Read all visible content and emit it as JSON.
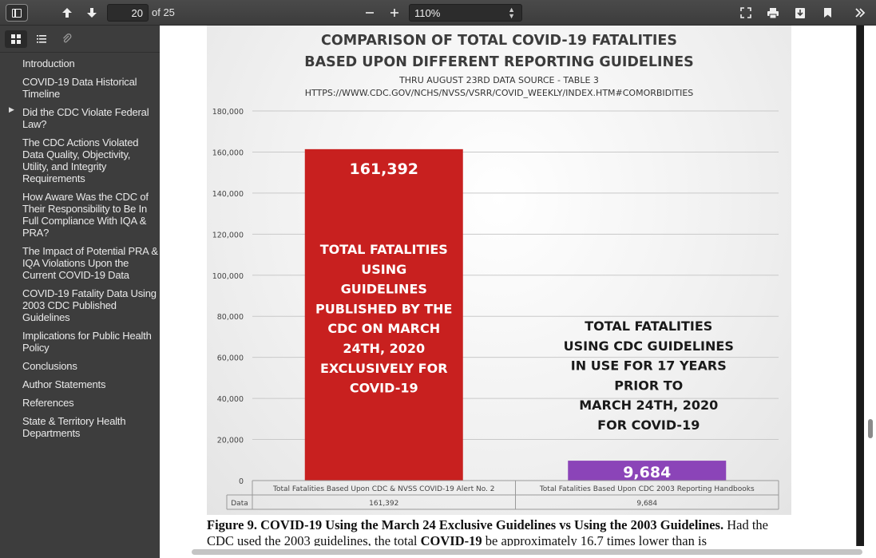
{
  "toolbar": {
    "page_current": "20",
    "page_total_label": "of 25",
    "zoom_value": "110%"
  },
  "icons": {
    "sidebar_toggle": "sidebar-toggle-icon",
    "prev_page": "arrow-up-icon",
    "next_page": "arrow-down-icon",
    "zoom_out": "minus-icon",
    "zoom_in": "plus-icon",
    "fit": "fit-page-icon",
    "print": "printer-icon",
    "download": "download-icon",
    "bookmark": "bookmark-icon",
    "more": "double-chevron-right-icon"
  },
  "sidebar": {
    "items": [
      {
        "label": "Introduction"
      },
      {
        "label": "COVID-19 Data Historical Timeline"
      },
      {
        "label": "Did the CDC Violate Federal Law?",
        "expandable": true
      },
      {
        "label": "The CDC Actions Violated Data Quality, Objectivity, Utility, and Integrity Requirements"
      },
      {
        "label": "How Aware Was the CDC of Their Responsibility to Be In Full Compliance With IQA & PRA?"
      },
      {
        "label": "The Impact of Potential PRA & IQA Violations Upon the Current COVID-19 Data"
      },
      {
        "label": "COVID-19 Fatality Data Using 2003 CDC Published Guidelines"
      },
      {
        "label": "Implications for Public Health Policy"
      },
      {
        "label": "Conclusions"
      },
      {
        "label": "Author Statements"
      },
      {
        "label": "References"
      },
      {
        "label": "State & Territory Health Departments"
      }
    ]
  },
  "colors": {
    "bar_red": "#c8201f",
    "bar_purple": "#8b44b8"
  },
  "chart_data": {
    "type": "bar",
    "title_line1": "COMPARISON OF TOTAL COVID-19 FATALITIES",
    "title_line2": "BASED UPON DIFFERENT REPORTING GUIDELINES",
    "subtitle_line1": "THRU AUGUST 23RD DATA SOURCE - TABLE 3",
    "subtitle_line2": "HTTPS://WWW.CDC.GOV/NCHS/NVSS/VSRR/COVID_WEEKLY/INDEX.HTM#COMORBIDITIES",
    "categories": [
      "Total Fatalities Based Upon CDC & NVSS COVID-19 Alert No. 2",
      "Total Fatalities Based Upon CDC 2003 Reporting Handbooks"
    ],
    "values": [
      161392,
      9684
    ],
    "value_labels": [
      "161,392",
      "9,684"
    ],
    "table_row_label": "Data",
    "table_values": [
      "161,392",
      "9,684"
    ],
    "ylim": [
      0,
      180000
    ],
    "yticks": [
      "0",
      "20,000",
      "40,000",
      "60,000",
      "80,000",
      "100,000",
      "120,000",
      "140,000",
      "160,000",
      "180,000"
    ],
    "annotations": [
      [
        "TOTAL FATALITIES",
        "USING",
        "GUIDELINES",
        "PUBLISHED BY THE",
        "CDC ON MARCH",
        "24TH, 2020",
        "EXCLUSIVELY FOR",
        "COVID-19"
      ],
      [
        "TOTAL FATALITIES",
        "USING CDC GUIDELINES",
        "IN USE FOR 17 YEARS",
        "PRIOR TO",
        "MARCH 24TH, 2020",
        "FOR COVID-19"
      ]
    ],
    "grid": true
  },
  "caption": {
    "label": "Figure 9.",
    "title": "COVID-19 Using the March 24 Exclusive Guidelines vs Using the 2003 Guidelines.",
    "text1": "Had the CDC used the 2003 guidelines, the total",
    "bold": "COVID-19",
    "text2": "be approximately 16.7 times lower than is"
  }
}
